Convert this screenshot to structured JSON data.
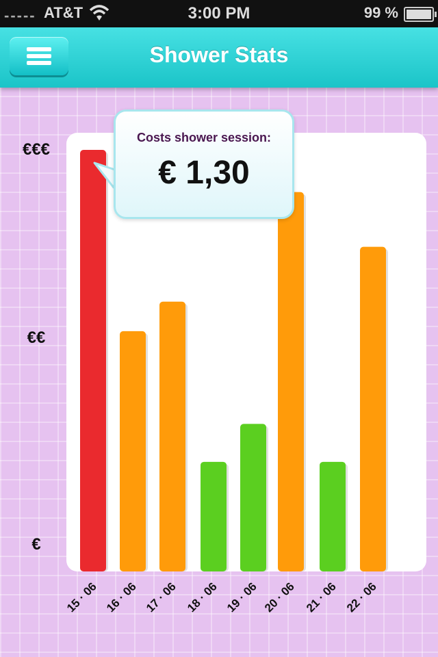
{
  "status_bar": {
    "signal": "-----",
    "carrier": "AT&T",
    "time": "3:00 PM",
    "battery": "99 %",
    "battery_level": 0.99
  },
  "nav": {
    "title": "Shower Stats",
    "menu_icon": "hamburger-menu-icon"
  },
  "tooltip": {
    "label": "Costs shower session:",
    "value": "€ 1,30"
  },
  "colors": {
    "red": "#ea2a2e",
    "orange": "#ff9b0a",
    "green": "#5bcf20",
    "nav": "#29cfd3"
  },
  "chart_data": {
    "type": "bar",
    "categories": [
      "15 · 06",
      "16 · 06",
      "17 · 06",
      "18 · 06",
      "19 · 06",
      "20 · 06",
      "21 · 06",
      "22 · 06"
    ],
    "values": [
      1.0,
      0.57,
      0.64,
      0.26,
      0.35,
      0.9,
      0.26,
      0.77
    ],
    "levels": [
      "red",
      "orange",
      "orange",
      "green",
      "green",
      "orange",
      "green",
      "orange"
    ],
    "y_tick_labels": [
      "€€€",
      "€€",
      "€"
    ],
    "ylim": [
      0,
      1
    ]
  }
}
